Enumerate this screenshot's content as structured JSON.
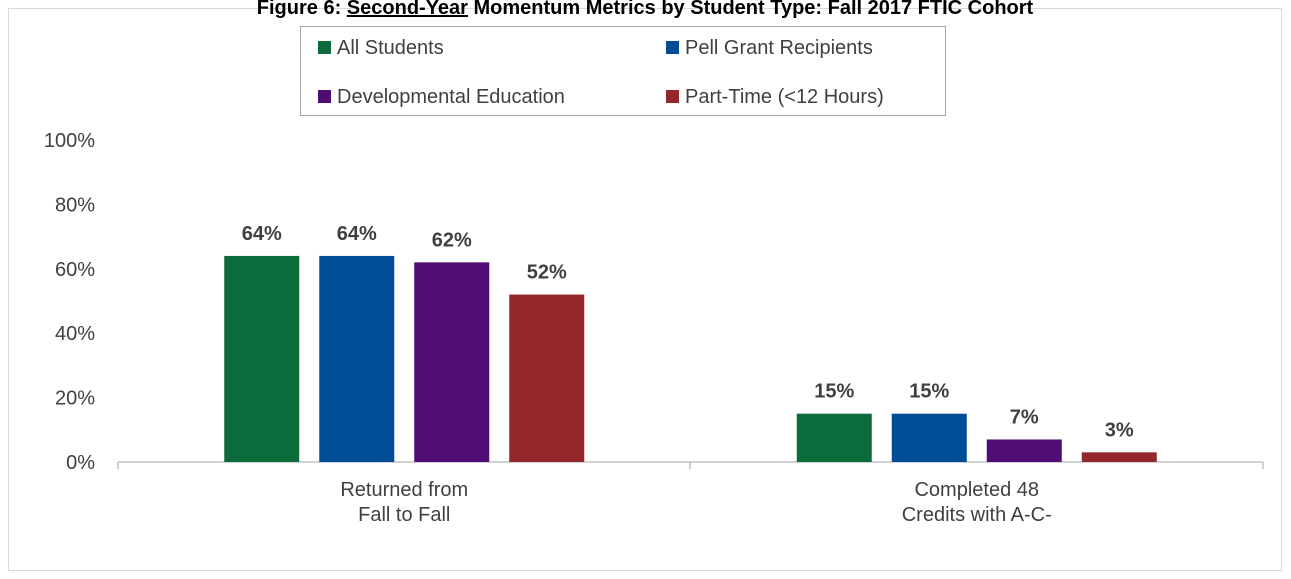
{
  "chart_data": {
    "type": "bar",
    "title": [
      "Figure 6: ",
      "Second-Year",
      " Momentum Metrics by Student Type: Fall 2017 FTIC Cohort"
    ],
    "categories": [
      [
        "Returned from",
        "Fall to Fall"
      ],
      [
        "Completed 48",
        "Credits with A-C-"
      ]
    ],
    "series": [
      {
        "name": "All Students",
        "color": "#0b6b3a",
        "values": [
          64,
          15
        ],
        "value_labels": [
          "64%",
          "15%"
        ]
      },
      {
        "name": "Pell Grant Recipients",
        "color": "#004c97",
        "values": [
          64,
          15
        ],
        "value_labels": [
          "64%",
          "15%"
        ]
      },
      {
        "name": "Developmental Education",
        "color": "#4f0c73",
        "values": [
          62,
          7
        ],
        "value_labels": [
          "62%",
          "7%"
        ]
      },
      {
        "name": "Part-Time (<12 Hours)",
        "color": "#93272c",
        "values": [
          52,
          3
        ],
        "value_labels": [
          "52%",
          "3%"
        ]
      }
    ],
    "ylim": [
      0,
      100
    ],
    "yticks": [
      {
        "value": 0,
        "label": "0%"
      },
      {
        "value": 20,
        "label": "20%"
      },
      {
        "value": 40,
        "label": "40%"
      },
      {
        "value": 60,
        "label": "60%"
      },
      {
        "value": 80,
        "label": "80%"
      },
      {
        "value": 100,
        "label": "100%"
      }
    ],
    "grid": false,
    "legend": "top"
  }
}
